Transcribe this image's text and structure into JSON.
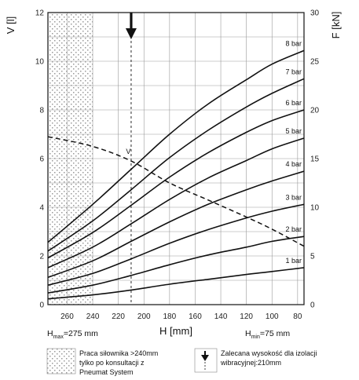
{
  "chart_data": {
    "type": "line",
    "xlabel": "H [mm]",
    "ylabel_left": "V [l]",
    "ylabel_right": "F [kN]",
    "x_axis_reversed": true,
    "xlim": [
      275,
      75
    ],
    "xticks": [
      260,
      240,
      220,
      200,
      180,
      160,
      140,
      120,
      100,
      80
    ],
    "ylim_left": [
      0,
      12
    ],
    "yticks_left": [
      0,
      2,
      4,
      6,
      8,
      10,
      12
    ],
    "ylim_right": [
      0,
      30
    ],
    "yticks_right": [
      0,
      5,
      10,
      15,
      20,
      25,
      30
    ],
    "grid": true,
    "volume_series": {
      "name": "V",
      "axis": "left",
      "style": "dashed",
      "points": [
        [
          275,
          6.9
        ],
        [
          240,
          6.5
        ],
        [
          210,
          5.9
        ],
        [
          180,
          5.0
        ],
        [
          150,
          4.3
        ],
        [
          120,
          3.6
        ],
        [
          100,
          3.1
        ],
        [
          75,
          2.4
        ]
      ]
    },
    "series": [
      {
        "name": "1 bar",
        "axis": "right",
        "points": [
          [
            275,
            0.6
          ],
          [
            240,
            1.0
          ],
          [
            210,
            1.5
          ],
          [
            180,
            2.1
          ],
          [
            150,
            2.6
          ],
          [
            120,
            3.1
          ],
          [
            100,
            3.4
          ],
          [
            75,
            3.8
          ]
        ]
      },
      {
        "name": "2 bar",
        "axis": "right",
        "points": [
          [
            275,
            1.2
          ],
          [
            240,
            2.0
          ],
          [
            210,
            3.0
          ],
          [
            180,
            4.1
          ],
          [
            150,
            5.1
          ],
          [
            120,
            5.9
          ],
          [
            100,
            6.5
          ],
          [
            75,
            7.0
          ]
        ]
      },
      {
        "name": "3 bar",
        "axis": "right",
        "points": [
          [
            275,
            2.0
          ],
          [
            240,
            3.2
          ],
          [
            210,
            4.7
          ],
          [
            180,
            6.3
          ],
          [
            150,
            7.7
          ],
          [
            120,
            8.9
          ],
          [
            100,
            9.6
          ],
          [
            75,
            10.3
          ]
        ]
      },
      {
        "name": "4 bar",
        "axis": "right",
        "points": [
          [
            275,
            2.8
          ],
          [
            240,
            4.5
          ],
          [
            210,
            6.5
          ],
          [
            180,
            8.5
          ],
          [
            150,
            10.3
          ],
          [
            120,
            11.8
          ],
          [
            100,
            12.7
          ],
          [
            75,
            13.7
          ]
        ]
      },
      {
        "name": "5 bar",
        "axis": "right",
        "points": [
          [
            275,
            3.8
          ],
          [
            240,
            5.9
          ],
          [
            210,
            8.3
          ],
          [
            180,
            10.8
          ],
          [
            150,
            13.0
          ],
          [
            120,
            14.8
          ],
          [
            100,
            16.0
          ],
          [
            75,
            17.1
          ]
        ]
      },
      {
        "name": "6 bar",
        "axis": "right",
        "points": [
          [
            275,
            4.8
          ],
          [
            240,
            7.4
          ],
          [
            210,
            10.2
          ],
          [
            180,
            13.1
          ],
          [
            150,
            15.6
          ],
          [
            120,
            17.7
          ],
          [
            100,
            18.9
          ],
          [
            75,
            20.0
          ]
        ]
      },
      {
        "name": "7 bar",
        "axis": "right",
        "points": [
          [
            275,
            5.5
          ],
          [
            240,
            8.6
          ],
          [
            210,
            11.8
          ],
          [
            180,
            15.1
          ],
          [
            150,
            17.9
          ],
          [
            120,
            20.3
          ],
          [
            100,
            21.7
          ],
          [
            75,
            23.2
          ]
        ]
      },
      {
        "name": "8 bar",
        "axis": "right",
        "points": [
          [
            275,
            6.4
          ],
          [
            240,
            10.3
          ],
          [
            210,
            13.9
          ],
          [
            180,
            17.5
          ],
          [
            150,
            20.6
          ],
          [
            120,
            23.1
          ],
          [
            100,
            24.7
          ],
          [
            75,
            26.1
          ]
        ]
      }
    ],
    "volume_marker_label": "V",
    "hatched_region": [
      275,
      240
    ],
    "recommended_height_marker": 210,
    "h_max_label": {
      "main": "H",
      "sub": "max",
      "rest": "=275 mm"
    },
    "h_min_label": {
      "main": "H",
      "sub": "min",
      "rest": "=75 mm"
    },
    "legend": [
      {
        "symbol": "hatch",
        "lines": [
          "Praca siłownika >240mm",
          "tylko po konsultacji z",
          "Pneumat System"
        ]
      },
      {
        "symbol": "arrow",
        "lines": [
          "Zalecana wysokość dla izolacji",
          "wibracyjnej:210mm"
        ]
      }
    ]
  }
}
